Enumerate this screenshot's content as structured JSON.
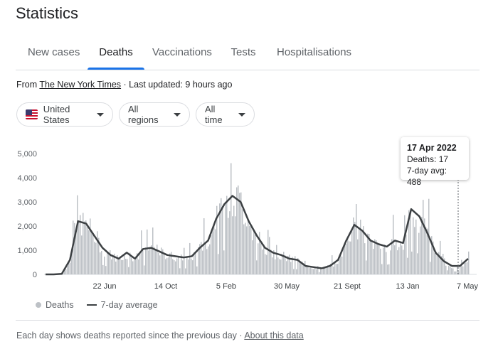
{
  "page": {
    "title": "Statistics"
  },
  "tabs": [
    {
      "label": "New cases",
      "active": false
    },
    {
      "label": "Deaths",
      "active": true
    },
    {
      "label": "Vaccinations",
      "active": false
    },
    {
      "label": "Tests",
      "active": false
    },
    {
      "label": "Hospitalisations",
      "active": false
    }
  ],
  "source": {
    "prefix": "From",
    "link": "The New York Times",
    "updated": "· Last updated: 9 hours ago"
  },
  "filters": {
    "country": "United States",
    "region": "All regions",
    "time": "All time"
  },
  "tooltip": {
    "date": "17 Apr 2022",
    "deaths": "Deaths: 17",
    "avg": "7-day avg: 488"
  },
  "legend": {
    "bars": "Deaths",
    "line": "7-day average"
  },
  "footer": {
    "note": "Each day shows deaths reported since the previous day",
    "link": "About this data"
  },
  "colors": {
    "accent": "#1a73e8",
    "bar": "#bdc1c6",
    "line": "#3c4043"
  },
  "chart_data": {
    "type": "bar",
    "ylim": [
      0,
      5000
    ],
    "yticks": [
      "0",
      "1,000",
      "2,000",
      "3,000",
      "4,000",
      "5,000"
    ],
    "xticks": [
      "22 Jun",
      "14 Oct",
      "5 Feb",
      "30 May",
      "21 Sept",
      "13 Jan",
      "7 May"
    ],
    "series": [
      {
        "name": "Deaths",
        "type": "bar"
      },
      {
        "name": "7-day average",
        "type": "line",
        "values": [
          0,
          0,
          20,
          600,
          2200,
          2100,
          1600,
          1100,
          800,
          650,
          900,
          650,
          1050,
          1100,
          950,
          800,
          750,
          700,
          750,
          1100,
          1400,
          2300,
          2900,
          3250,
          3000,
          2200,
          1600,
          1100,
          900,
          800,
          650,
          600,
          350,
          300,
          250,
          350,
          600,
          1400,
          2050,
          1800,
          1400,
          1250,
          1150,
          1400,
          1300,
          2700,
          2400,
          1700,
          900,
          550,
          350,
          350,
          650
        ]
      }
    ]
  }
}
